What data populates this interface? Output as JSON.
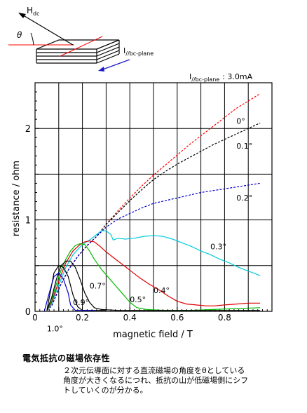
{
  "diagram": {
    "field_label_main": "H",
    "field_label_sub": "dc",
    "angle_label": "θ",
    "current_label_main": "I",
    "current_label_sub": "//bc-plane"
  },
  "current_readout": {
    "label_main": "I",
    "label_sub": "//bc-plane",
    "value": ": 3.0mA"
  },
  "caption": {
    "title": "電気抵抗の磁場依存性",
    "lines": [
      "２次元伝導面に対する直流磁場の角度をθとしている",
      "角度が大きくなるにつれ、抵抗の山が低磁場側にシフ",
      "トしていくのが分かる。"
    ]
  },
  "chart_data": {
    "type": "line",
    "title": "",
    "xlabel": "magnetic field / T",
    "ylabel": "resistance / ohm",
    "xlim": [
      0,
      1.0
    ],
    "ylim": [
      0,
      2.5
    ],
    "x_ticks": [
      0,
      0.2,
      0.4,
      0.6,
      0.8
    ],
    "x_tick_labels": [
      "0",
      "0.2",
      "0.4",
      "0.6",
      "0.8"
    ],
    "y_ticks": [
      0,
      1,
      2
    ],
    "y_tick_labels": [
      "0",
      "1",
      "2"
    ],
    "grid": true,
    "series": [
      {
        "name": "0°",
        "color": "#ff0000",
        "dashed": true,
        "label_at": [
          0.85,
          2.05
        ],
        "points": [
          [
            0.05,
            0.01
          ],
          [
            0.07,
            0.06
          ],
          [
            0.09,
            0.18
          ],
          [
            0.11,
            0.3
          ],
          [
            0.14,
            0.45
          ],
          [
            0.18,
            0.6
          ],
          [
            0.22,
            0.72
          ],
          [
            0.26,
            0.82
          ],
          [
            0.3,
            0.95
          ],
          [
            0.35,
            1.1
          ],
          [
            0.4,
            1.24
          ],
          [
            0.45,
            1.37
          ],
          [
            0.5,
            1.49
          ],
          [
            0.55,
            1.6
          ],
          [
            0.6,
            1.71
          ],
          [
            0.65,
            1.82
          ],
          [
            0.7,
            1.92
          ],
          [
            0.75,
            2.02
          ],
          [
            0.8,
            2.12
          ],
          [
            0.85,
            2.22
          ],
          [
            0.9,
            2.3
          ],
          [
            0.95,
            2.38
          ]
        ]
      },
      {
        "name": "0.1°",
        "color": "#000000",
        "dashed": true,
        "label_at": [
          0.85,
          1.78
        ],
        "points": [
          [
            0.05,
            0.01
          ],
          [
            0.07,
            0.06
          ],
          [
            0.09,
            0.18
          ],
          [
            0.11,
            0.3
          ],
          [
            0.14,
            0.45
          ],
          [
            0.18,
            0.6
          ],
          [
            0.22,
            0.72
          ],
          [
            0.26,
            0.82
          ],
          [
            0.3,
            0.95
          ],
          [
            0.35,
            1.08
          ],
          [
            0.4,
            1.21
          ],
          [
            0.45,
            1.33
          ],
          [
            0.5,
            1.44
          ],
          [
            0.55,
            1.53
          ],
          [
            0.6,
            1.61
          ],
          [
            0.65,
            1.68
          ],
          [
            0.7,
            1.75
          ],
          [
            0.75,
            1.82
          ],
          [
            0.8,
            1.88
          ],
          [
            0.85,
            1.94
          ],
          [
            0.9,
            2.0
          ],
          [
            0.95,
            2.06
          ]
        ]
      },
      {
        "name": "0.2°",
        "color": "#0000cc",
        "dashed": true,
        "label_at": [
          0.85,
          1.21
        ],
        "points": [
          [
            0.05,
            0.01
          ],
          [
            0.07,
            0.06
          ],
          [
            0.09,
            0.18
          ],
          [
            0.11,
            0.3
          ],
          [
            0.14,
            0.45
          ],
          [
            0.18,
            0.6
          ],
          [
            0.22,
            0.72
          ],
          [
            0.26,
            0.82
          ],
          [
            0.3,
            0.92
          ],
          [
            0.35,
            1.01
          ],
          [
            0.4,
            1.07
          ],
          [
            0.45,
            1.13
          ],
          [
            0.5,
            1.18
          ],
          [
            0.55,
            1.21
          ],
          [
            0.6,
            1.24
          ],
          [
            0.65,
            1.27
          ],
          [
            0.7,
            1.3
          ],
          [
            0.75,
            1.32
          ],
          [
            0.8,
            1.34
          ],
          [
            0.85,
            1.36
          ],
          [
            0.9,
            1.38
          ],
          [
            0.95,
            1.4
          ]
        ]
      },
      {
        "name": "0.3°",
        "color": "#00ccdd",
        "dashed": false,
        "label_at": [
          0.74,
          0.68
        ],
        "points": [
          [
            0.05,
            0.01
          ],
          [
            0.07,
            0.08
          ],
          [
            0.09,
            0.22
          ],
          [
            0.11,
            0.35
          ],
          [
            0.13,
            0.48
          ],
          [
            0.16,
            0.62
          ],
          [
            0.2,
            0.73
          ],
          [
            0.23,
            0.78
          ],
          [
            0.26,
            0.84
          ],
          [
            0.28,
            0.88
          ],
          [
            0.3,
            0.88
          ],
          [
            0.32,
            0.84
          ],
          [
            0.33,
            0.78
          ],
          [
            0.35,
            0.8
          ],
          [
            0.38,
            0.79
          ],
          [
            0.42,
            0.8
          ],
          [
            0.46,
            0.82
          ],
          [
            0.5,
            0.83
          ],
          [
            0.54,
            0.82
          ],
          [
            0.58,
            0.79
          ],
          [
            0.62,
            0.75
          ],
          [
            0.66,
            0.71
          ],
          [
            0.7,
            0.66
          ],
          [
            0.74,
            0.62
          ],
          [
            0.78,
            0.57
          ],
          [
            0.82,
            0.53
          ],
          [
            0.86,
            0.48
          ],
          [
            0.9,
            0.44
          ],
          [
            0.95,
            0.39
          ]
        ]
      },
      {
        "name": "0.4°",
        "color": "#dd0000",
        "dashed": false,
        "label_at": [
          0.5,
          0.2
        ],
        "points": [
          [
            0.05,
            0.01
          ],
          [
            0.07,
            0.1
          ],
          [
            0.09,
            0.25
          ],
          [
            0.11,
            0.4
          ],
          [
            0.13,
            0.53
          ],
          [
            0.16,
            0.66
          ],
          [
            0.19,
            0.73
          ],
          [
            0.21,
            0.76
          ],
          [
            0.23,
            0.77
          ],
          [
            0.25,
            0.76
          ],
          [
            0.27,
            0.72
          ],
          [
            0.3,
            0.65
          ],
          [
            0.33,
            0.59
          ],
          [
            0.36,
            0.53
          ],
          [
            0.4,
            0.45
          ],
          [
            0.44,
            0.37
          ],
          [
            0.48,
            0.3
          ],
          [
            0.52,
            0.24
          ],
          [
            0.56,
            0.17
          ],
          [
            0.6,
            0.11
          ],
          [
            0.64,
            0.08
          ],
          [
            0.68,
            0.07
          ],
          [
            0.72,
            0.06
          ],
          [
            0.76,
            0.06
          ],
          [
            0.8,
            0.07
          ],
          [
            0.85,
            0.08
          ],
          [
            0.9,
            0.09
          ],
          [
            0.95,
            0.09
          ]
        ]
      },
      {
        "name": "0.5°",
        "color": "#00bb00",
        "dashed": false,
        "label_at": [
          0.4,
          0.1
        ],
        "points": [
          [
            0.05,
            0.01
          ],
          [
            0.07,
            0.12
          ],
          [
            0.09,
            0.3
          ],
          [
            0.11,
            0.45
          ],
          [
            0.13,
            0.57
          ],
          [
            0.15,
            0.66
          ],
          [
            0.17,
            0.72
          ],
          [
            0.19,
            0.74
          ],
          [
            0.21,
            0.73
          ],
          [
            0.23,
            0.66
          ],
          [
            0.25,
            0.57
          ],
          [
            0.28,
            0.46
          ],
          [
            0.31,
            0.37
          ],
          [
            0.34,
            0.28
          ],
          [
            0.37,
            0.19
          ],
          [
            0.4,
            0.1
          ],
          [
            0.43,
            0.04
          ],
          [
            0.47,
            0.02
          ],
          [
            0.55,
            0.01
          ],
          [
            0.65,
            0.01
          ],
          [
            0.75,
            0.02
          ],
          [
            0.85,
            0.03
          ],
          [
            0.95,
            0.04
          ]
        ]
      },
      {
        "name": "0.7°",
        "color": "#000000",
        "dashed": false,
        "label_at": [
          0.23,
          0.25
        ],
        "points": [
          [
            0.05,
            0.01
          ],
          [
            0.07,
            0.15
          ],
          [
            0.09,
            0.35
          ],
          [
            0.11,
            0.5
          ],
          [
            0.13,
            0.55
          ],
          [
            0.15,
            0.55
          ],
          [
            0.17,
            0.48
          ],
          [
            0.19,
            0.35
          ],
          [
            0.21,
            0.2
          ],
          [
            0.23,
            0.1
          ],
          [
            0.25,
            0.04
          ],
          [
            0.28,
            0.02
          ],
          [
            0.35,
            0.01
          ],
          [
            0.5,
            0.01
          ],
          [
            0.7,
            0.01
          ],
          [
            0.95,
            0.01
          ]
        ]
      },
      {
        "name": "0.9°",
        "color": "#000000",
        "dashed": false,
        "label_at": [
          0.16,
          0.07
        ],
        "points": [
          [
            0.05,
            0.01
          ],
          [
            0.06,
            0.15
          ],
          [
            0.08,
            0.42
          ],
          [
            0.1,
            0.5
          ],
          [
            0.12,
            0.48
          ],
          [
            0.14,
            0.38
          ],
          [
            0.16,
            0.18
          ],
          [
            0.18,
            0.05
          ],
          [
            0.2,
            0.01
          ],
          [
            0.3,
            0.01
          ]
        ]
      },
      {
        "name": "1.0°",
        "color": "#0000cc",
        "dashed": false,
        "label_at": [
          0.05,
          -0.22
        ],
        "points": [
          [
            0.04,
            0.01
          ],
          [
            0.06,
            0.2
          ],
          [
            0.08,
            0.38
          ],
          [
            0.1,
            0.42
          ],
          [
            0.12,
            0.35
          ],
          [
            0.14,
            0.2
          ],
          [
            0.15,
            0.07
          ],
          [
            0.17,
            0.01
          ],
          [
            0.25,
            0.01
          ]
        ]
      }
    ]
  }
}
